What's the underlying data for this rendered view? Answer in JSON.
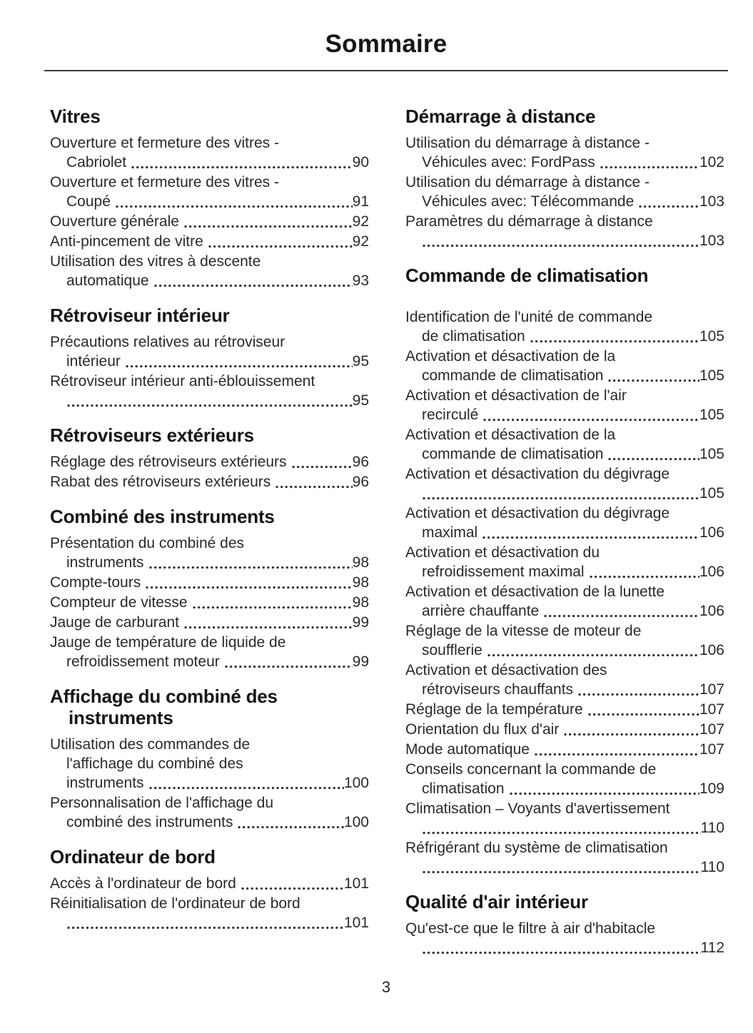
{
  "page": {
    "title": "Sommaire",
    "number": "3"
  },
  "columns": {
    "left": [
      {
        "heading_lines": [
          "Vitres"
        ],
        "entries": [
          {
            "lines": [
              "Ouverture et fermeture des vitres -",
              "Cabriolet"
            ],
            "page": "90"
          },
          {
            "lines": [
              "Ouverture et fermeture des vitres -",
              "Coupé"
            ],
            "page": "91"
          },
          {
            "lines": [
              "Ouverture générale"
            ],
            "page": "92"
          },
          {
            "lines": [
              "Anti-pincement de vitre"
            ],
            "page": "92"
          },
          {
            "lines": [
              "Utilisation des vitres à descente",
              "automatique"
            ],
            "page": "93"
          }
        ]
      },
      {
        "heading_lines": [
          "Rétroviseur intérieur"
        ],
        "entries": [
          {
            "lines": [
              "Précautions relatives au rétroviseur",
              "intérieur"
            ],
            "page": "95"
          },
          {
            "lines": [
              "Rétroviseur intérieur anti-éblouissement",
              ""
            ],
            "page": "95"
          }
        ]
      },
      {
        "heading_lines": [
          "Rétroviseurs extérieurs"
        ],
        "entries": [
          {
            "lines": [
              "Réglage des rétroviseurs extérieurs"
            ],
            "page": "96"
          },
          {
            "lines": [
              "Rabat des rétroviseurs extérieurs"
            ],
            "page": "96"
          }
        ]
      },
      {
        "heading_lines": [
          "Combiné des instruments"
        ],
        "entries": [
          {
            "lines": [
              "Présentation du combiné des",
              "instruments"
            ],
            "page": "98"
          },
          {
            "lines": [
              "Compte-tours"
            ],
            "page": "98"
          },
          {
            "lines": [
              "Compteur de vitesse"
            ],
            "page": "98"
          },
          {
            "lines": [
              "Jauge de carburant"
            ],
            "page": "99"
          },
          {
            "lines": [
              "Jauge de température de liquide de",
              "refroidissement moteur"
            ],
            "page": "99"
          }
        ]
      },
      {
        "heading_lines": [
          "Affichage du combiné des",
          "instruments"
        ],
        "entries": [
          {
            "lines": [
              "Utilisation des commandes de",
              "l'affichage du combiné des",
              "instruments"
            ],
            "page": "100"
          },
          {
            "lines": [
              "Personnalisation de l'affichage du",
              "combiné des instruments"
            ],
            "page": "100"
          }
        ]
      },
      {
        "heading_lines": [
          "Ordinateur de bord"
        ],
        "entries": [
          {
            "lines": [
              "Accès à l'ordinateur de bord"
            ],
            "page": "101"
          },
          {
            "lines": [
              "Réinitialisation de l'ordinateur de bord",
              ""
            ],
            "page": "101"
          }
        ]
      }
    ],
    "right": [
      {
        "heading_lines": [
          "Démarrage à distance"
        ],
        "entries": [
          {
            "lines": [
              "Utilisation du démarrage à distance -",
              "Véhicules avec: FordPass"
            ],
            "page": "102"
          },
          {
            "lines": [
              "Utilisation du démarrage à distance -",
              "Véhicules avec: Télécommande"
            ],
            "page": "103"
          },
          {
            "lines": [
              "Paramètres du démarrage à distance",
              ""
            ],
            "page": "103"
          }
        ]
      },
      {
        "heading_lines": [
          "Commande de climatisation"
        ],
        "gap_after_heading": 30,
        "entries": [
          {
            "lines": [
              "Identification de l'unité de commande",
              "de climatisation"
            ],
            "page": "105"
          },
          {
            "lines": [
              "Activation et désactivation de la",
              "commande de climatisation"
            ],
            "page": "105"
          },
          {
            "lines": [
              "Activation et désactivation de l'air",
              "recirculé"
            ],
            "page": "105"
          },
          {
            "lines": [
              "Activation et désactivation de la",
              "commande de climatisation"
            ],
            "page": "105"
          },
          {
            "lines": [
              "Activation et désactivation du dégivrage",
              ""
            ],
            "page": "105"
          },
          {
            "lines": [
              "Activation et désactivation du dégivrage",
              "maximal"
            ],
            "page": "106"
          },
          {
            "lines": [
              "Activation et désactivation du",
              "refroidissement maximal"
            ],
            "page": "106"
          },
          {
            "lines": [
              "Activation et désactivation de la lunette",
              "arrière chauffante"
            ],
            "page": "106"
          },
          {
            "lines": [
              "Réglage de la vitesse de moteur de",
              "soufflerie"
            ],
            "page": "106"
          },
          {
            "lines": [
              "Activation et désactivation des",
              "rétroviseurs chauffants"
            ],
            "page": "107"
          },
          {
            "lines": [
              "Réglage de la température"
            ],
            "page": "107"
          },
          {
            "lines": [
              "Orientation du flux d'air"
            ],
            "page": "107"
          },
          {
            "lines": [
              "Mode automatique"
            ],
            "page": "107"
          },
          {
            "lines": [
              "Conseils concernant la commande de",
              "climatisation"
            ],
            "page": "109"
          },
          {
            "lines": [
              "Climatisation – Voyants d'avertissement",
              ""
            ],
            "page": "110"
          },
          {
            "lines": [
              "Réfrigérant du système de climatisation",
              ""
            ],
            "page": "110"
          }
        ]
      },
      {
        "heading_lines": [
          "Qualité d'air intérieur"
        ],
        "entries": [
          {
            "lines": [
              "Qu'est-ce que le filtre à air d'habitacle",
              ""
            ],
            "page": "112"
          }
        ]
      }
    ]
  }
}
